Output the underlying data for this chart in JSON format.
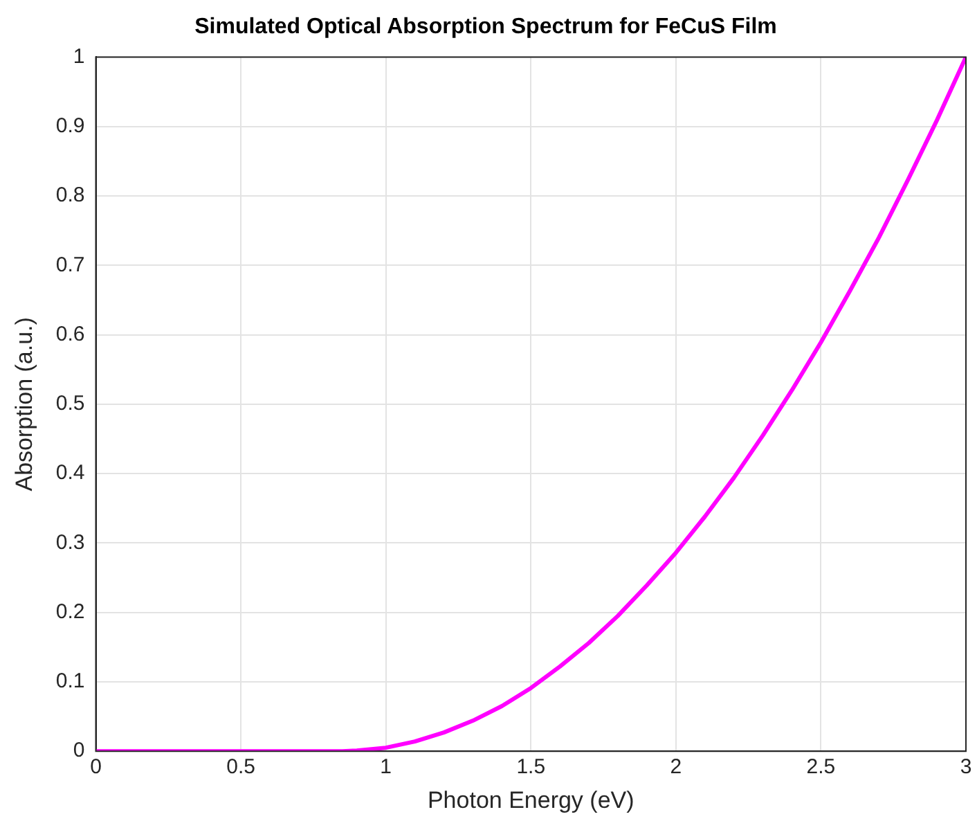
{
  "chart_data": {
    "type": "line",
    "title": "Simulated Optical Absorption Spectrum for FeCuS Film",
    "xlabel": "Photon Energy (eV)",
    "ylabel": "Absorption (a.u.)",
    "x": [
      0,
      0.5,
      0.85,
      0.9,
      1,
      1.1,
      1.2,
      1.3,
      1.4,
      1.5,
      1.6,
      1.7,
      1.8,
      1.9,
      2,
      2.1,
      2.2,
      2.3,
      2.4,
      2.5,
      2.6,
      2.7,
      2.8,
      2.9,
      3
    ],
    "series": [
      {
        "color": "#ff00ff",
        "values": [
          0,
          0,
          0,
          0.001,
          0.005,
          0.014,
          0.027,
          0.044,
          0.065,
          0.091,
          0.122,
          0.156,
          0.195,
          0.239,
          0.286,
          0.338,
          0.394,
          0.455,
          0.52,
          0.589,
          0.663,
          0.74,
          0.823,
          0.909,
          1
        ]
      }
    ],
    "xlim": [
      0,
      3
    ],
    "xticks": [
      0,
      0.5,
      1,
      1.5,
      2,
      2.5,
      3
    ],
    "ylim": [
      0,
      1
    ],
    "yticks": [
      0,
      0.1,
      0.2,
      0.3,
      0.4,
      0.5,
      0.6,
      0.7,
      0.8,
      0.9,
      1
    ],
    "grid": true,
    "legend": false,
    "marker": "none",
    "line_style": "solid"
  }
}
